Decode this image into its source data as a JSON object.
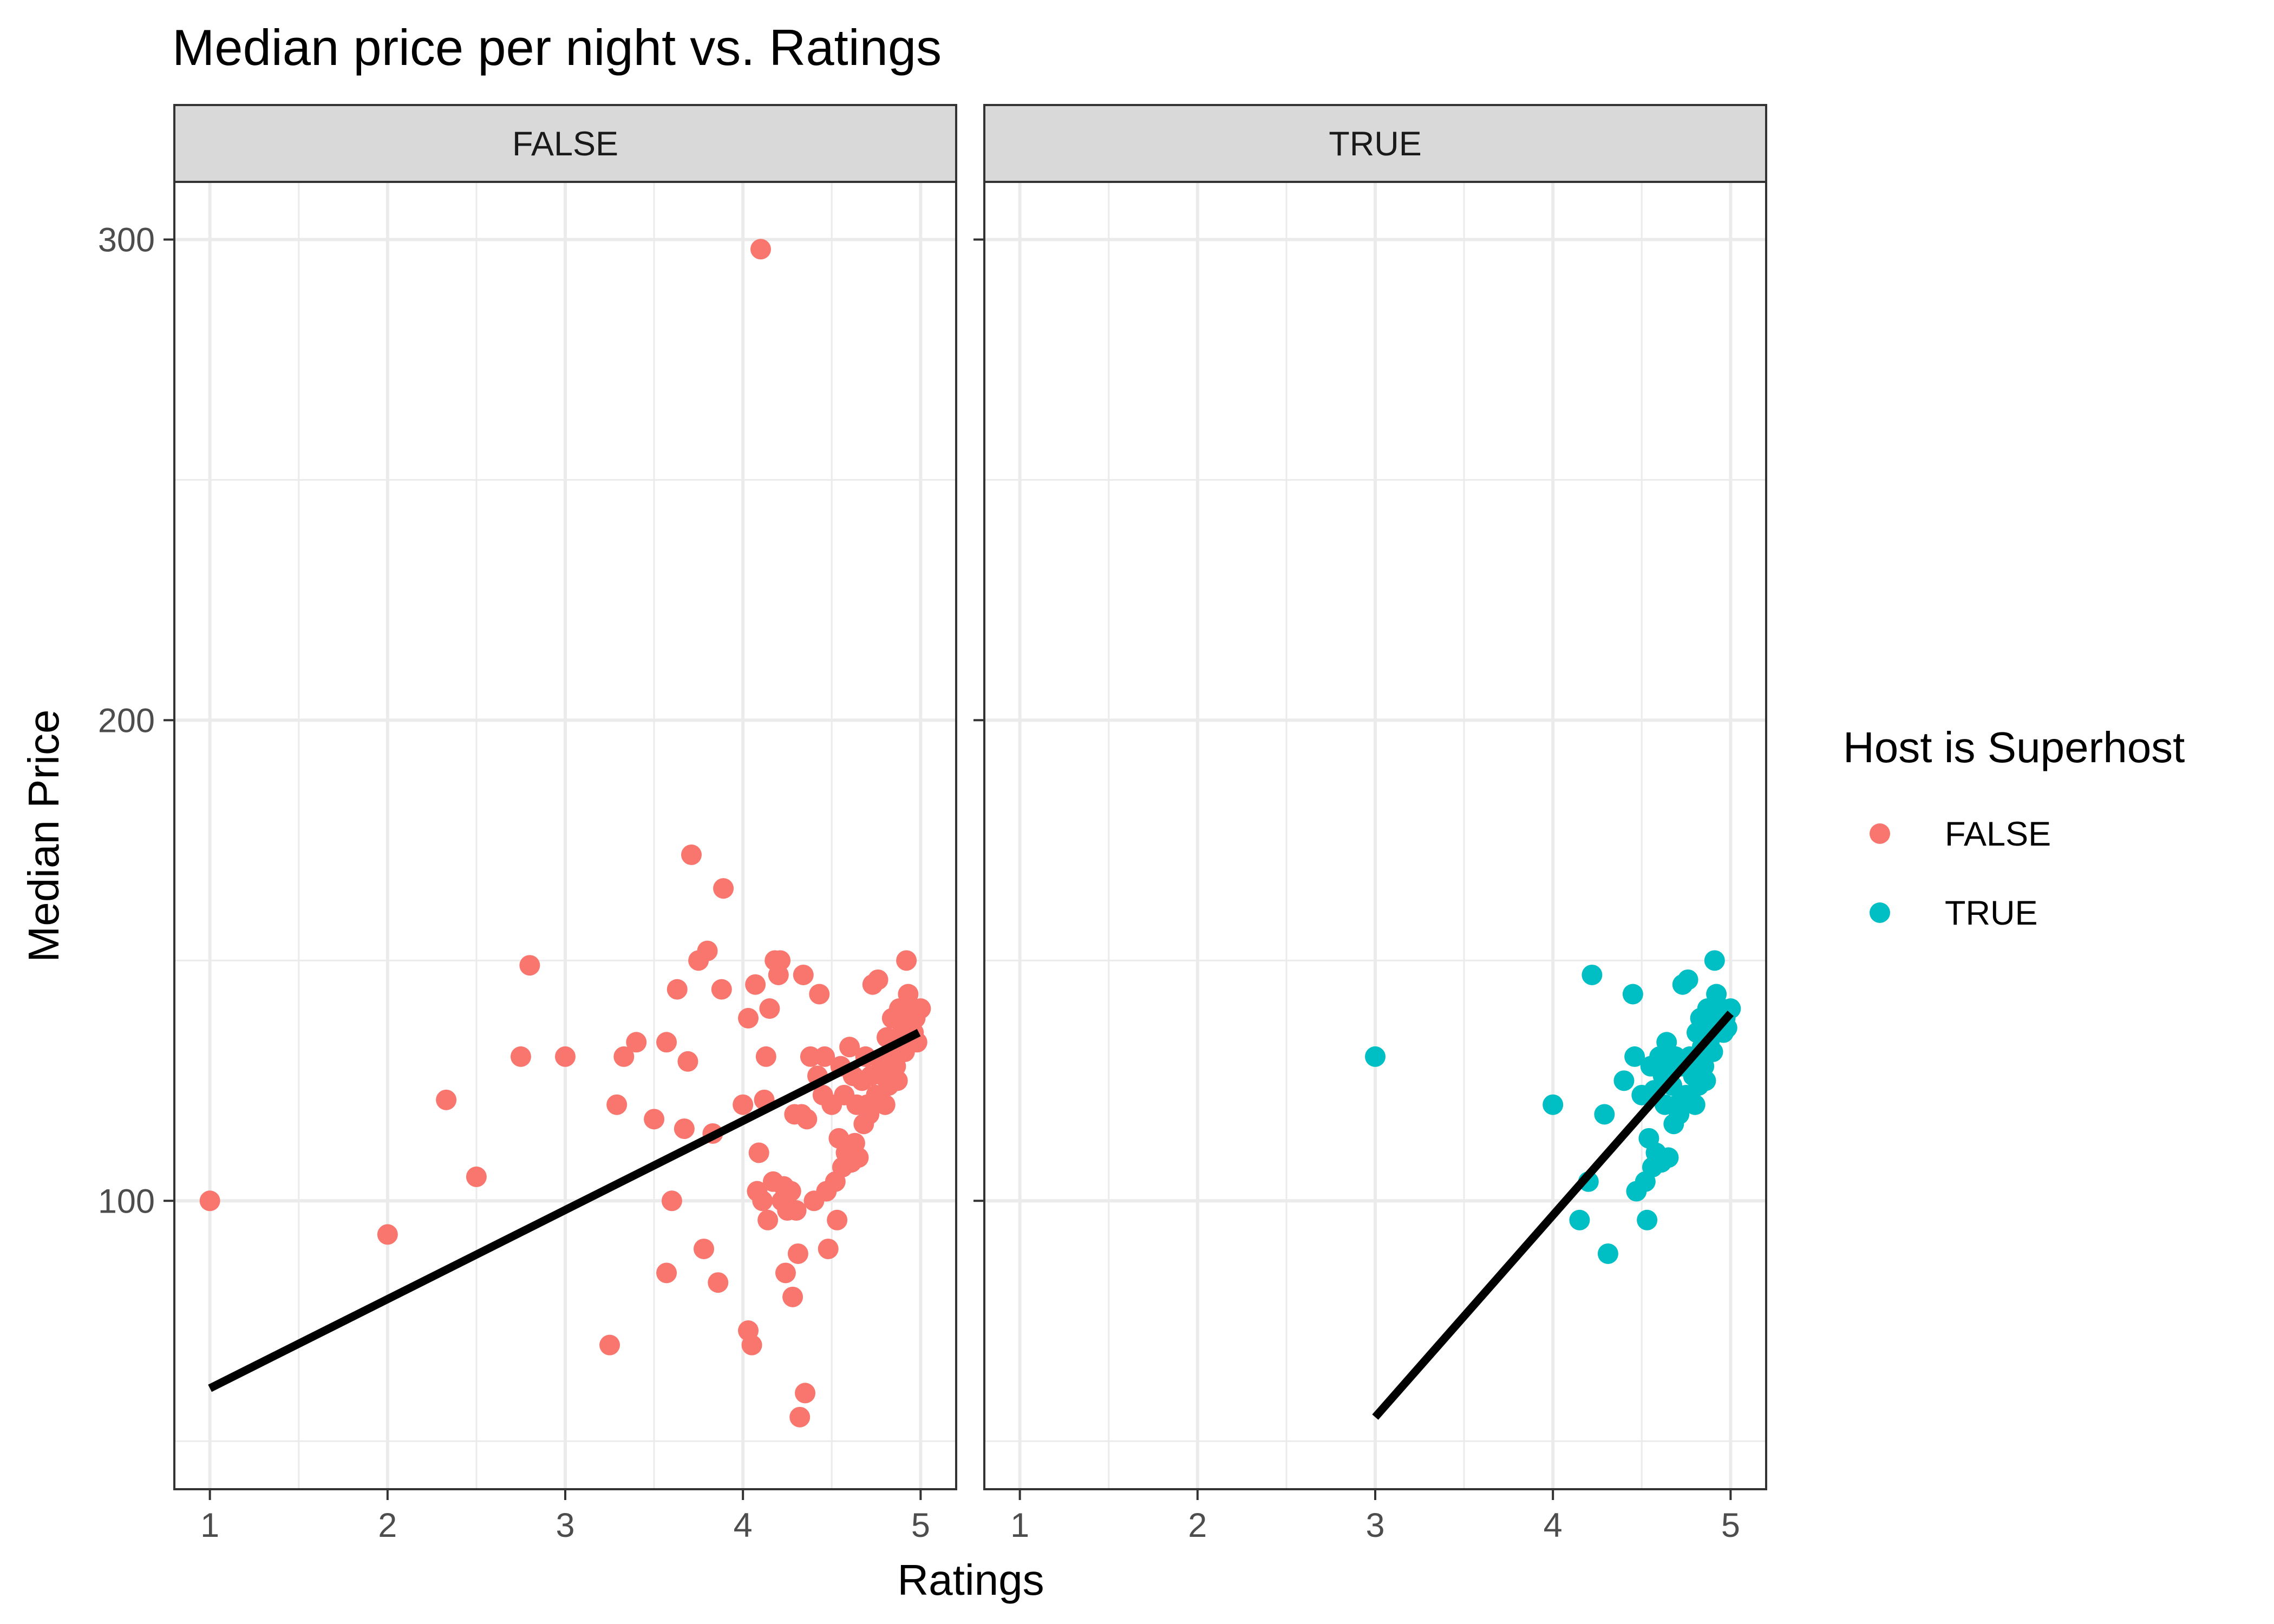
{
  "chart_data": {
    "type": "scatter",
    "title": "Median price per night vs. Ratings",
    "xlabel": "Ratings",
    "ylabel": "Median Price",
    "xlim": [
      0.8,
      5.2
    ],
    "ylim": [
      40,
      312
    ],
    "x_ticks": [
      1,
      2,
      3,
      4,
      5
    ],
    "y_ticks": [
      100,
      200,
      300
    ],
    "grid": true,
    "legend": {
      "title": "Host is Superhost",
      "placement": "right",
      "entries": [
        {
          "label": "FALSE",
          "color": "#F8766D"
        },
        {
          "label": "TRUE",
          "color": "#00BFC4"
        }
      ]
    },
    "facets": [
      {
        "strip_label": "FALSE",
        "color": "#F8766D",
        "fit_line": {
          "x": [
            1.0,
            4.99
          ],
          "y": [
            61,
            135
          ]
        },
        "points": [
          [
            1.0,
            100
          ],
          [
            2.0,
            93
          ],
          [
            2.33,
            121
          ],
          [
            2.5,
            105
          ],
          [
            2.75,
            130
          ],
          [
            2.8,
            149
          ],
          [
            3.0,
            130
          ],
          [
            3.25,
            70
          ],
          [
            3.29,
            120
          ],
          [
            3.33,
            130
          ],
          [
            3.4,
            133
          ],
          [
            3.5,
            117
          ],
          [
            3.57,
            133
          ],
          [
            3.57,
            85
          ],
          [
            3.6,
            100
          ],
          [
            3.63,
            144
          ],
          [
            3.67,
            115
          ],
          [
            3.69,
            129
          ],
          [
            3.71,
            172
          ],
          [
            3.75,
            150
          ],
          [
            3.78,
            90
          ],
          [
            3.8,
            152
          ],
          [
            3.83,
            114
          ],
          [
            3.86,
            83
          ],
          [
            3.88,
            144
          ],
          [
            3.89,
            165
          ],
          [
            4.0,
            120
          ],
          [
            4.03,
            73
          ],
          [
            4.03,
            138
          ],
          [
            4.05,
            70
          ],
          [
            4.07,
            145
          ],
          [
            4.08,
            102
          ],
          [
            4.09,
            110
          ],
          [
            4.1,
            298
          ],
          [
            4.11,
            100
          ],
          [
            4.12,
            121
          ],
          [
            4.13,
            130
          ],
          [
            4.14,
            96
          ],
          [
            4.15,
            140
          ],
          [
            4.17,
            104
          ],
          [
            4.18,
            150
          ],
          [
            4.2,
            147
          ],
          [
            4.21,
            150
          ],
          [
            4.22,
            100
          ],
          [
            4.23,
            103
          ],
          [
            4.24,
            85
          ],
          [
            4.25,
            98
          ],
          [
            4.27,
            102
          ],
          [
            4.28,
            80
          ],
          [
            4.29,
            118
          ],
          [
            4.3,
            98
          ],
          [
            4.31,
            89
          ],
          [
            4.32,
            55
          ],
          [
            4.33,
            118
          ],
          [
            4.34,
            147
          ],
          [
            4.35,
            60
          ],
          [
            4.36,
            117
          ],
          [
            4.38,
            130
          ],
          [
            4.4,
            100
          ],
          [
            4.42,
            126
          ],
          [
            4.43,
            143
          ],
          [
            4.45,
            122
          ],
          [
            4.46,
            130
          ],
          [
            4.47,
            102
          ],
          [
            4.48,
            90
          ],
          [
            4.5,
            120
          ],
          [
            4.52,
            104
          ],
          [
            4.53,
            96
          ],
          [
            4.54,
            113
          ],
          [
            4.55,
            128
          ],
          [
            4.56,
            107
          ],
          [
            4.57,
            122
          ],
          [
            4.58,
            110
          ],
          [
            4.6,
            132
          ],
          [
            4.61,
            108
          ],
          [
            4.62,
            126
          ],
          [
            4.63,
            112
          ],
          [
            4.64,
            120
          ],
          [
            4.65,
            109
          ],
          [
            4.67,
            125
          ],
          [
            4.68,
            116
          ],
          [
            4.69,
            130
          ],
          [
            4.7,
            120
          ],
          [
            4.71,
            118
          ],
          [
            4.72,
            126
          ],
          [
            4.73,
            145
          ],
          [
            4.75,
            122
          ],
          [
            4.76,
            146
          ],
          [
            4.78,
            128
          ],
          [
            4.79,
            126
          ],
          [
            4.8,
            120
          ],
          [
            4.81,
            134
          ],
          [
            4.82,
            124
          ],
          [
            4.83,
            130
          ],
          [
            4.84,
            138
          ],
          [
            4.85,
            132
          ],
          [
            4.86,
            128
          ],
          [
            4.87,
            125
          ],
          [
            4.88,
            140
          ],
          [
            4.89,
            134
          ],
          [
            4.9,
            136
          ],
          [
            4.91,
            131
          ],
          [
            4.92,
            150
          ],
          [
            4.93,
            143
          ],
          [
            4.94,
            137
          ],
          [
            4.95,
            140
          ],
          [
            4.96,
            135
          ],
          [
            4.97,
            138
          ],
          [
            4.98,
            133
          ],
          [
            5.0,
            140
          ]
        ]
      },
      {
        "strip_label": "TRUE",
        "color": "#00BFC4",
        "fit_line": {
          "x": [
            3.0,
            5.0
          ],
          "y": [
            55,
            139
          ]
        },
        "points": [
          [
            3.0,
            130
          ],
          [
            4.0,
            120
          ],
          [
            4.15,
            96
          ],
          [
            4.2,
            104
          ],
          [
            4.22,
            147
          ],
          [
            4.29,
            118
          ],
          [
            4.31,
            89
          ],
          [
            4.4,
            125
          ],
          [
            4.45,
            143
          ],
          [
            4.46,
            130
          ],
          [
            4.47,
            102
          ],
          [
            4.5,
            122
          ],
          [
            4.52,
            104
          ],
          [
            4.53,
            96
          ],
          [
            4.54,
            113
          ],
          [
            4.55,
            128
          ],
          [
            4.56,
            107
          ],
          [
            4.57,
            123
          ],
          [
            4.58,
            110
          ],
          [
            4.6,
            130
          ],
          [
            4.61,
            108
          ],
          [
            4.62,
            126
          ],
          [
            4.63,
            120
          ],
          [
            4.64,
            133
          ],
          [
            4.65,
            109
          ],
          [
            4.66,
            127
          ],
          [
            4.67,
            124
          ],
          [
            4.68,
            116
          ],
          [
            4.69,
            130
          ],
          [
            4.7,
            120
          ],
          [
            4.71,
            118
          ],
          [
            4.72,
            128
          ],
          [
            4.73,
            145
          ],
          [
            4.75,
            122
          ],
          [
            4.76,
            146
          ],
          [
            4.77,
            130
          ],
          [
            4.78,
            128
          ],
          [
            4.79,
            126
          ],
          [
            4.8,
            120
          ],
          [
            4.81,
            135
          ],
          [
            4.82,
            124
          ],
          [
            4.83,
            138
          ],
          [
            4.84,
            132
          ],
          [
            4.85,
            128
          ],
          [
            4.86,
            125
          ],
          [
            4.87,
            140
          ],
          [
            4.88,
            133
          ],
          [
            4.89,
            136
          ],
          [
            4.9,
            131
          ],
          [
            4.91,
            150
          ],
          [
            4.92,
            143
          ],
          [
            4.93,
            137
          ],
          [
            4.95,
            140
          ],
          [
            4.96,
            135
          ],
          [
            4.97,
            138
          ],
          [
            4.98,
            136
          ],
          [
            5.0,
            140
          ]
        ]
      }
    ]
  }
}
